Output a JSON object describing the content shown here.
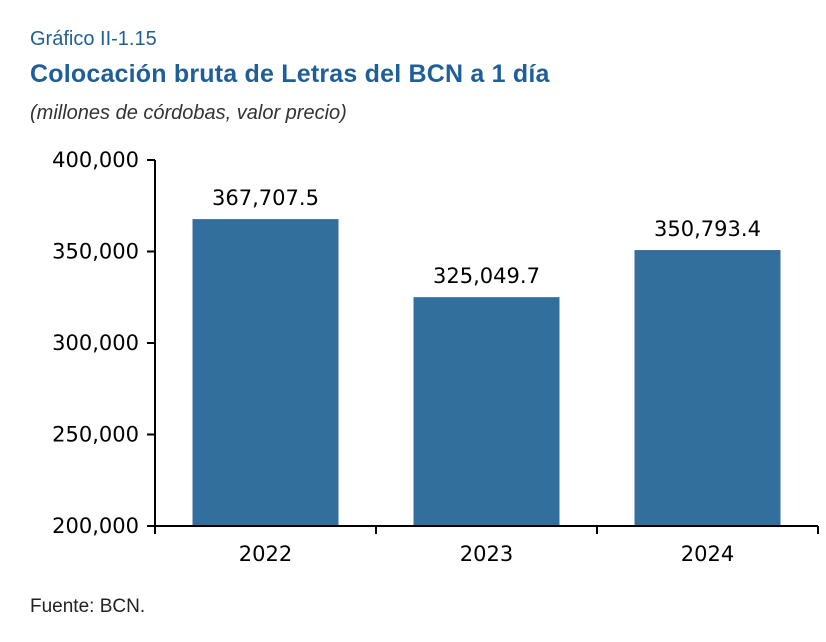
{
  "header": {
    "label": "Gráfico II-1.15",
    "title": "Colocación bruta de Letras del BCN a 1 día",
    "subtitle": "(millones de córdobas, valor precio)"
  },
  "footer": {
    "source": "Fuente: BCN."
  },
  "colors": {
    "bar": "#336f9c",
    "title": "#1f5f99",
    "axis": "#000000"
  },
  "chart_data": {
    "type": "bar",
    "title": "Colocación bruta de Letras del BCN a 1 día",
    "subtitle": "(millones de córdobas, valor precio)",
    "categories": [
      "2022",
      "2023",
      "2024"
    ],
    "values": [
      367707.5,
      325049.7,
      350793.4
    ],
    "data_labels": [
      "367,707.5",
      "325,049.7",
      "350,793.4"
    ],
    "y_ticks": [
      200000,
      250000,
      300000,
      350000,
      400000
    ],
    "y_tick_labels": [
      "200,000",
      "250,000",
      "300,000",
      "350,000",
      "400,000"
    ],
    "ylim": [
      200000,
      400000
    ],
    "grid": false,
    "legend": "none"
  }
}
